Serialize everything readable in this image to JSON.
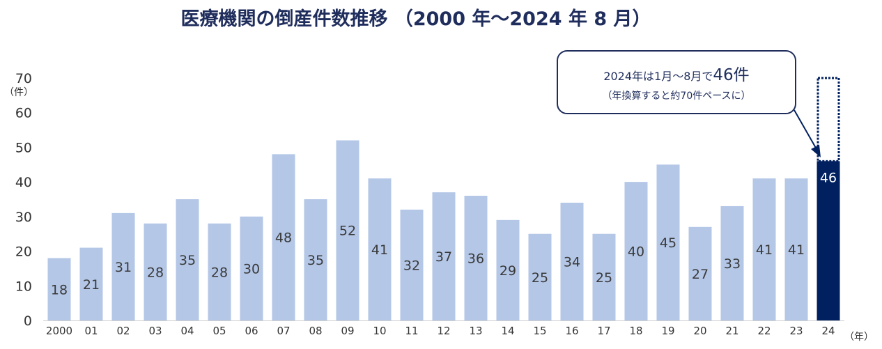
{
  "chart_data": {
    "type": "bar",
    "title": "医療機関の倒産件数推移 （2000 年～2024 年 8 月）",
    "ylabel": "（件）",
    "xlabel": "（年）",
    "ylim": [
      0,
      70
    ],
    "yticks": [
      0,
      10,
      20,
      30,
      40,
      50,
      60,
      70
    ],
    "grid": false,
    "categories": [
      "2000",
      "01",
      "02",
      "03",
      "04",
      "05",
      "06",
      "07",
      "08",
      "09",
      "10",
      "11",
      "12",
      "13",
      "14",
      "15",
      "16",
      "17",
      "18",
      "19",
      "20",
      "21",
      "22",
      "23",
      "24"
    ],
    "values": [
      18,
      21,
      31,
      28,
      35,
      28,
      30,
      48,
      35,
      52,
      41,
      32,
      37,
      36,
      29,
      25,
      34,
      25,
      40,
      45,
      27,
      33,
      41,
      41,
      46
    ],
    "highlight_index": 24,
    "projected_value": 70,
    "colors": {
      "bar": "#b4c7e7",
      "highlight": "#002060",
      "text": "#1f2d5c"
    },
    "annotation": {
      "line1_prefix": "2024年は1月～8月で",
      "line1_big": "46件",
      "line2": "（年換算すると約70件ペースに）"
    }
  }
}
